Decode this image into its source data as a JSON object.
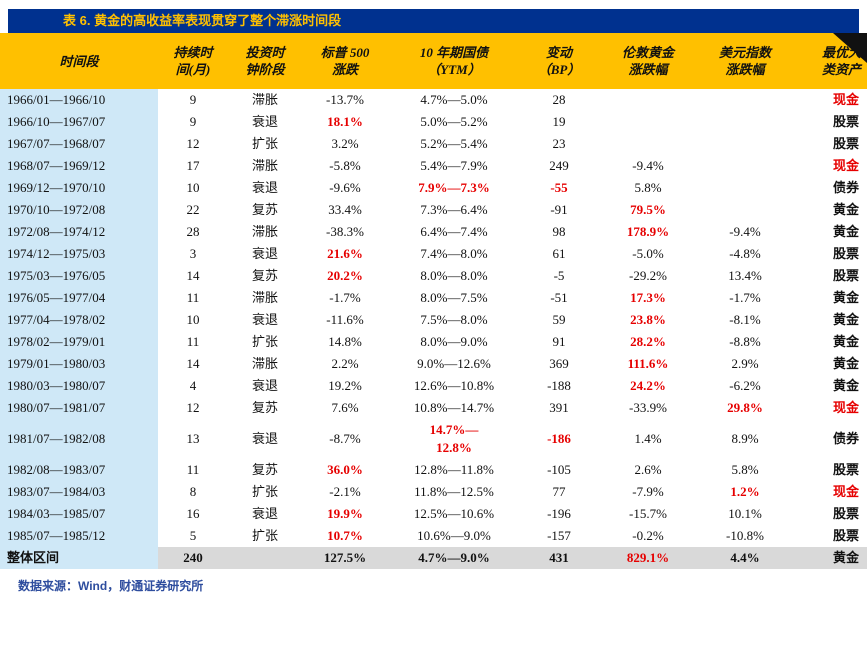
{
  "title": "表 6. 黄金的高收益率表现贯穿了整个滞涨时间段",
  "source": "数据来源：Wind，财通证券研究所",
  "colors": {
    "title_bar_bg": "#00318f",
    "title_text": "#ffc000",
    "header_bg": "#ffc000",
    "first_col_bg": "#cfe8f7",
    "total_row_bg": "#d9d9d9",
    "highlight_red": "#e60000",
    "source_text": "#2e4d9e"
  },
  "table": {
    "headers": [
      "时间段",
      "持续时\n间(月)",
      "投资时\n钟阶段",
      "标普 500\n涨跌",
      "10 年期国债\n（YTM）",
      "变动\n（BP）",
      "伦敦黄金\n涨跌幅",
      "美元指数\n涨跌幅",
      "最优大\n类资产"
    ],
    "rows": [
      {
        "cells": [
          "1966/01—1966/10",
          "9",
          "滞胀",
          "-13.7%",
          "4.7%—5.0%",
          "28",
          "",
          "",
          {
            "text": "现金",
            "red": true
          }
        ]
      },
      {
        "cells": [
          "1966/10—1967/07",
          "9",
          "衰退",
          {
            "text": "18.1%",
            "red": true
          },
          "5.0%—5.2%",
          "19",
          "",
          "",
          "股票"
        ]
      },
      {
        "cells": [
          "1967/07—1968/07",
          "12",
          "扩张",
          "3.2%",
          "5.2%—5.4%",
          "23",
          "",
          "",
          "股票"
        ]
      },
      {
        "cells": [
          "1968/07—1969/12",
          "17",
          "滞胀",
          "-5.8%",
          "5.4%—7.9%",
          "249",
          "-9.4%",
          "",
          {
            "text": "现金",
            "red": true
          }
        ]
      },
      {
        "cells": [
          "1969/12—1970/10",
          "10",
          "衰退",
          "-9.6%",
          {
            "text": "7.9%—7.3%",
            "red": true
          },
          {
            "text": "-55",
            "red": true
          },
          "5.8%",
          "",
          "债券"
        ]
      },
      {
        "cells": [
          "1970/10—1972/08",
          "22",
          "复苏",
          "33.4%",
          "7.3%—6.4%",
          "-91",
          {
            "text": "79.5%",
            "red": true
          },
          "",
          "黄金"
        ]
      },
      {
        "cells": [
          "1972/08—1974/12",
          "28",
          "滞胀",
          "-38.3%",
          "6.4%—7.4%",
          "98",
          {
            "text": "178.9%",
            "red": true
          },
          "-9.4%",
          "黄金"
        ]
      },
      {
        "cells": [
          "1974/12—1975/03",
          "3",
          "衰退",
          {
            "text": "21.6%",
            "red": true
          },
          "7.4%—8.0%",
          "61",
          "-5.0%",
          "-4.8%",
          "股票"
        ]
      },
      {
        "cells": [
          "1975/03—1976/05",
          "14",
          "复苏",
          {
            "text": "20.2%",
            "red": true
          },
          "8.0%—8.0%",
          "-5",
          "-29.2%",
          "13.4%",
          "股票"
        ]
      },
      {
        "cells": [
          "1976/05—1977/04",
          "11",
          "滞胀",
          "-1.7%",
          "8.0%—7.5%",
          "-51",
          {
            "text": "17.3%",
            "red": true
          },
          "-1.7%",
          "黄金"
        ]
      },
      {
        "cells": [
          "1977/04—1978/02",
          "10",
          "衰退",
          "-11.6%",
          "7.5%—8.0%",
          "59",
          {
            "text": "23.8%",
            "red": true
          },
          "-8.1%",
          "黄金"
        ]
      },
      {
        "cells": [
          "1978/02—1979/01",
          "11",
          "扩张",
          "14.8%",
          "8.0%—9.0%",
          "91",
          {
            "text": "28.2%",
            "red": true
          },
          "-8.8%",
          "黄金"
        ]
      },
      {
        "cells": [
          "1979/01—1980/03",
          "14",
          "滞胀",
          "2.2%",
          "9.0%—12.6%",
          "369",
          {
            "text": "111.6%",
            "red": true
          },
          "2.9%",
          "黄金"
        ]
      },
      {
        "cells": [
          "1980/03—1980/07",
          "4",
          "衰退",
          "19.2%",
          "12.6%—10.8%",
          "-188",
          {
            "text": "24.2%",
            "red": true
          },
          "-6.2%",
          "黄金"
        ]
      },
      {
        "cells": [
          "1980/07—1981/07",
          "12",
          "复苏",
          "7.6%",
          "10.8%—14.7%",
          "391",
          "-33.9%",
          {
            "text": "29.8%",
            "red": true
          },
          {
            "text": "现金",
            "red": true
          }
        ]
      },
      {
        "cells": [
          "1981/07—1982/08",
          "13",
          "衰退",
          "-8.7%",
          {
            "text": "14.7%—\n12.8%",
            "red": true
          },
          {
            "text": "-186",
            "red": true
          },
          "1.4%",
          "8.9%",
          "债券"
        ]
      },
      {
        "cells": [
          "1982/08—1983/07",
          "11",
          "复苏",
          {
            "text": "36.0%",
            "red": true
          },
          "12.8%—11.8%",
          "-105",
          "2.6%",
          "5.8%",
          "股票"
        ]
      },
      {
        "cells": [
          "1983/07—1984/03",
          "8",
          "扩张",
          "-2.1%",
          "11.8%—12.5%",
          "77",
          "-7.9%",
          {
            "text": "1.2%",
            "red": true
          },
          {
            "text": "现金",
            "red": true
          }
        ]
      },
      {
        "cells": [
          "1984/03—1985/07",
          "16",
          "衰退",
          {
            "text": "19.9%",
            "red": true
          },
          "12.5%—10.6%",
          "-196",
          "-15.7%",
          "10.1%",
          "股票"
        ]
      },
      {
        "cells": [
          "1985/07—1985/12",
          "5",
          "扩张",
          {
            "text": "10.7%",
            "red": true
          },
          "10.6%—9.0%",
          "-157",
          "-0.2%",
          "-10.8%",
          "股票"
        ]
      },
      {
        "total": true,
        "cells": [
          "整体区间",
          "240",
          "",
          "127.5%",
          "4.7%—9.0%",
          "431",
          {
            "text": "829.1%",
            "red": true
          },
          "4.4%",
          "黄金"
        ]
      }
    ]
  }
}
